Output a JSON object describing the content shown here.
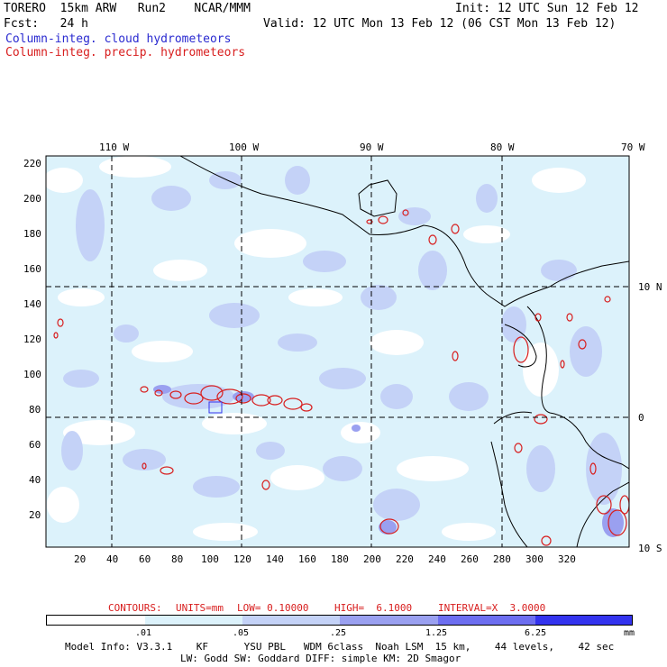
{
  "header": {
    "model": "TORERO  15km ARW   Run2    NCAR/MMM",
    "init": "Init: 12 UTC Sun 12 Feb 12",
    "fcst": "Fcst:   24 h",
    "valid": "Valid: 12 UTC Mon 13 Feb 12 (06 CST Mon 13 Feb 12)",
    "legend_cloud": "Column-integ. cloud hydrometeors",
    "legend_precip": "Column-integ. precip. hydrometeors"
  },
  "map": {
    "top_lon_labels": [
      "110 W",
      "100 W",
      "90 W",
      "80 W",
      "70 W"
    ],
    "right_lat_labels": [
      "10 N",
      "0",
      "10 S"
    ],
    "left_ticks": [
      "220",
      "200",
      "180",
      "160",
      "140",
      "120",
      "100",
      "80",
      "60",
      "40",
      "20"
    ],
    "bottom_ticks": [
      "20",
      "40",
      "60",
      "80",
      "100",
      "120",
      "140",
      "160",
      "180",
      "200",
      "220",
      "240",
      "260",
      "280",
      "300",
      "320"
    ]
  },
  "contours_info": {
    "prefix": "CONTOURS:",
    "units": "UNITS=mm",
    "low": "LOW= 0.10000",
    "high": "HIGH=  6.1000",
    "interval": "INTERVAL=X  3.0000"
  },
  "colorbar": {
    "levels": [
      ".01",
      ".05",
      ".25",
      "1.25",
      "6.25"
    ],
    "unit": "mm",
    "colors": [
      "#ffffff",
      "#dcf2fb",
      "#c4d2f7",
      "#9aa0f0",
      "#6d6ef0",
      "#3333ee"
    ]
  },
  "footer": {
    "line1": "Model Info: V3.3.1    KF      YSU PBL   WDM 6class  Noah LSM  15 km,    44 levels,    42 sec",
    "line2": "LW: Godd SW: Goddard DIFF: simple KM: 2D Smagor"
  }
}
